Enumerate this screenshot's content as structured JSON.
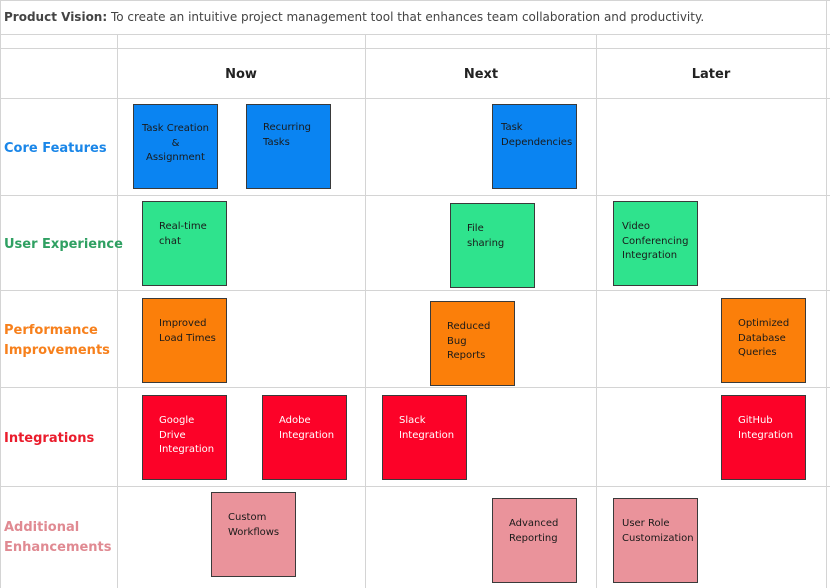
{
  "vision": {
    "label": "Product Vision:",
    "text": " To create an intuitive project management tool that enhances team collaboration and productivity."
  },
  "columns": [
    "Now",
    "Next",
    "Later"
  ],
  "rows": [
    {
      "label": "Core Features",
      "color": "#1a86e8"
    },
    {
      "label": "User Experience",
      "color": "#2fa062"
    },
    {
      "label": "Performance Improvements",
      "color": "#f7801c"
    },
    {
      "label": "Integrations",
      "color": "#ea1c2c"
    },
    {
      "label": "Additional Enhancements",
      "color": "#e08a92"
    }
  ],
  "notes": {
    "task_creation": "Task Creation\n&\nAssignment",
    "recurring_tasks": "Recurring\nTasks",
    "task_dependencies": "Task\nDependencies",
    "realtime_chat": "Real-time\nchat",
    "file_sharing": "File\nsharing",
    "video_conferencing": "Video\nConferencing\nIntegration",
    "improved_load_times": "Improved\nLoad Times",
    "reduced_bug_reports": "Reduced\nBug\nReports",
    "optimized_db_queries": "Optimized\nDatabase\nQueries",
    "google_drive": "Google\nDrive\nIntegration",
    "adobe": "Adobe\nIntegration",
    "slack": "Slack\nIntegration",
    "github": "GitHub\nIntegration",
    "custom_workflows": "Custom\nWorkflows",
    "advanced_reporting": "Advanced\nReporting",
    "user_role_customization": "User Role\nCustomization"
  },
  "colors": {
    "blue": "#0a84f2",
    "green": "#2fe38d",
    "orange": "#fb7f0a",
    "red": "#fc0228",
    "pink": "#ea939b"
  }
}
